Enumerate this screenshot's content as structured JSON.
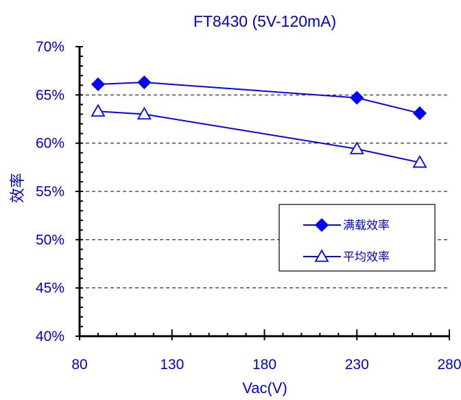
{
  "colors": {
    "series": "#0000ff",
    "text": "#0000cc",
    "axis": "#000000",
    "grid": "#000000",
    "background": "#ffffff"
  },
  "chart_data": {
    "type": "line",
    "title": "FT8430 (5V-120mA)",
    "xlabel": "Vac(V)",
    "ylabel": "效率",
    "xlim": [
      80,
      280
    ],
    "ylim": [
      0.4,
      0.7
    ],
    "x_ticks": [
      80,
      130,
      180,
      230,
      280
    ],
    "x_tick_labels": [
      "80",
      "130",
      "180",
      "230",
      "280"
    ],
    "y_ticks": [
      0.4,
      0.45,
      0.5,
      0.55,
      0.6,
      0.65,
      0.7
    ],
    "y_tick_labels": [
      "40%",
      "45%",
      "50%",
      "55%",
      "60%",
      "65%",
      "70%"
    ],
    "grid": "horizontal dashed",
    "legend_position": "right",
    "series": [
      {
        "name": "满载效率",
        "marker": "diamond",
        "filled": true,
        "x": [
          90,
          115,
          230,
          264
        ],
        "y": [
          0.661,
          0.663,
          0.647,
          0.631
        ]
      },
      {
        "name": "平均效率",
        "marker": "triangle",
        "filled": false,
        "x": [
          90,
          115,
          230,
          264
        ],
        "y": [
          0.633,
          0.63,
          0.594,
          0.58
        ]
      }
    ]
  }
}
